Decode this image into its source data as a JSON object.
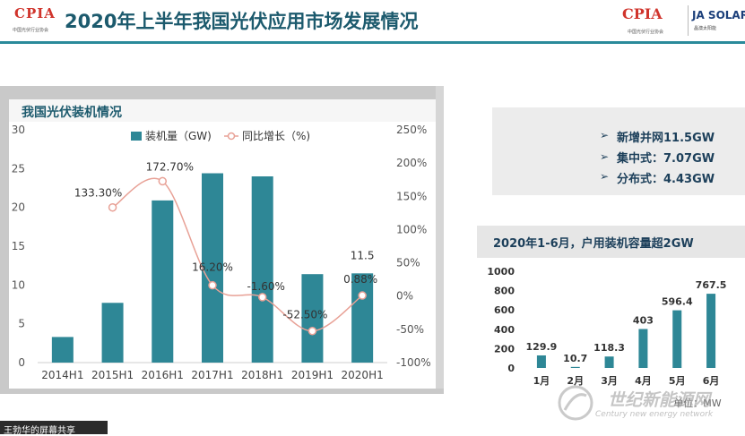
{
  "header": {
    "title": "2020年上半年我国光伏应用市场发展情况",
    "logo_left": "CPIA",
    "logo_left_sub": "中国光伏行业协会",
    "logo_right_cpia": "CPIA",
    "logo_right_cpia_sub": "中国光伏行业协会",
    "logo_right_ja": "JA SOLAR",
    "logo_right_ja_sub": "晶澳太阳能"
  },
  "colors": {
    "accent": "#2e8796",
    "line": "#e8a196",
    "title": "#1c5a6d"
  },
  "main_chart_title": "我国光伏装机情况",
  "chart_data": [
    {
      "type": "bar",
      "title": "",
      "categories": [
        "2014H1",
        "2015H1",
        "2016H1",
        "2017H1",
        "2018H1",
        "2019H1",
        "2020H1"
      ],
      "series": [
        {
          "name": "装机量（GW)",
          "type": "bar",
          "axis": "left",
          "values": [
            3.3,
            7.7,
            20.9,
            24.4,
            24.0,
            11.4,
            11.5
          ]
        },
        {
          "name": "同比增长（%)",
          "type": "line",
          "axis": "right",
          "values": [
            null,
            133.3,
            172.7,
            16.2,
            -1.6,
            -52.5,
            0.88
          ]
        }
      ],
      "data_labels": {
        "bar": {
          "2020H1": "11.5"
        },
        "line": {
          "2015H1": "133.30%",
          "2016H1": "172.70%",
          "2017H1": "16.20%",
          "2018H1": "-1.60%",
          "2019H1": "-52.50%",
          "2020H1": "0.88%"
        }
      },
      "y_left": {
        "min": 0,
        "max": 30,
        "ticks": [
          "0",
          "5",
          "10",
          "15",
          "20",
          "25",
          "30"
        ]
      },
      "y_right": {
        "min": -100,
        "max": 250,
        "ticks": [
          "-100%",
          "-50%",
          "0%",
          "50%",
          "100%",
          "150%",
          "200%",
          "250%"
        ]
      },
      "legend": "top",
      "grid": false
    },
    {
      "type": "bar",
      "title": "2020年1-6月，户用装机容量超2GW",
      "categories": [
        "1月",
        "2月",
        "3月",
        "4月",
        "5月",
        "6月"
      ],
      "values": [
        129.9,
        10.7,
        118.3,
        403,
        596.4,
        767.5
      ],
      "value_labels": [
        "129.9",
        "10.7",
        "118.3",
        "403",
        "596.4",
        "767.5"
      ],
      "ylim": [
        0,
        1000
      ],
      "y_ticks": [
        "0",
        "200",
        "400",
        "600",
        "800",
        "1000"
      ],
      "unit_label": "单位：MW",
      "grid": false
    }
  ],
  "info_box": {
    "items": [
      "新增并网11.5GW",
      "集中式：7.07GW",
      "分布式：4.43GW"
    ]
  },
  "footer": {
    "screen_share": "王勃华的屏幕共享"
  },
  "watermark": {
    "main": "世纪新能源网",
    "sub": "Century new energy network"
  }
}
